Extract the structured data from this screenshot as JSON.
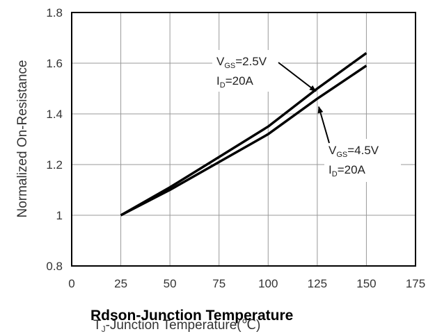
{
  "chart_data": {
    "type": "line",
    "title": "Rdson-Junction Temperature",
    "xlabel": "TJ-Junction Temperature(℃)",
    "xlabel_parts": {
      "main": "T",
      "sub": "J",
      "rest": "-Junction Temperature(℃)"
    },
    "ylabel": "Normalized On-Resistance",
    "xlim": [
      0,
      175
    ],
    "ylim": [
      0.8,
      1.8
    ],
    "x_ticks": [
      "0",
      "25",
      "50",
      "75",
      "100",
      "125",
      "150",
      "175"
    ],
    "y_ticks": [
      "0.8",
      "1",
      "1.2",
      "1.4",
      "1.6",
      "1.8"
    ],
    "grid": true,
    "series": [
      {
        "x": [
          25,
          50,
          75,
          100,
          125,
          150
        ],
        "y": [
          1.0,
          1.11,
          1.23,
          1.35,
          1.5,
          1.64
        ]
      },
      {
        "x": [
          25,
          50,
          75,
          100,
          125,
          150
        ],
        "y": [
          1.0,
          1.1,
          1.21,
          1.32,
          1.46,
          1.59
        ]
      }
    ],
    "annotations": [
      {
        "vgs_main": "V",
        "vgs_sub": "GS",
        "vgs_val": "=2.5V",
        "id_main": "I",
        "id_sub": "D",
        "id_val": "=20A",
        "target_x": 125,
        "target_y": 1.5
      },
      {
        "vgs_main": "V",
        "vgs_sub": "GS",
        "vgs_val": "=4.5V",
        "id_main": "I",
        "id_sub": "D",
        "id_val": "=20A",
        "target_x": 127,
        "target_y": 1.45
      }
    ],
    "colors": {
      "line": "#000000",
      "grid": "#999999",
      "axis": "#000000"
    }
  }
}
